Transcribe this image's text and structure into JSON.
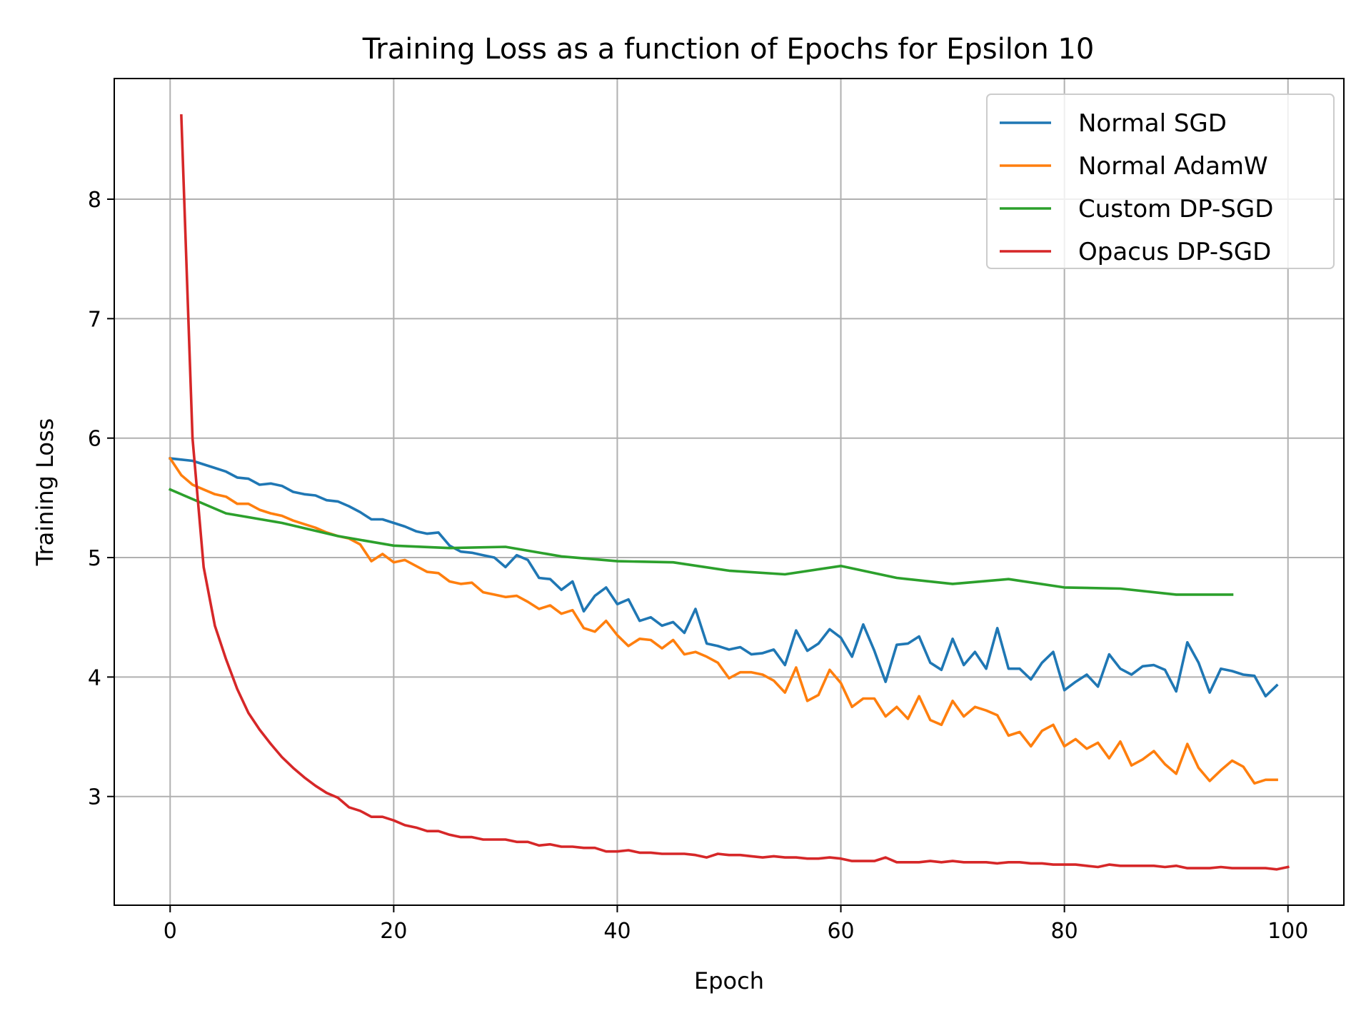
{
  "chart_data": {
    "type": "line",
    "title": "Training Loss as a function of Epochs for Epsilon 10",
    "xlabel": "Epoch",
    "ylabel": "Training Loss",
    "xlim": [
      -5,
      105
    ],
    "ylim": [
      2.09,
      9.01
    ],
    "xticks": [
      0,
      20,
      40,
      60,
      80,
      100
    ],
    "yticks": [
      3,
      4,
      5,
      6,
      7,
      8
    ],
    "grid": true,
    "legend_position": "top-right",
    "series": [
      {
        "name": "Normal SGD",
        "color": "#1f77b4",
        "x": [
          0,
          1,
          2,
          3,
          4,
          5,
          6,
          7,
          8,
          9,
          10,
          11,
          12,
          13,
          14,
          15,
          16,
          17,
          18,
          19,
          20,
          21,
          22,
          23,
          24,
          25,
          26,
          27,
          28,
          29,
          30,
          31,
          32,
          33,
          34,
          35,
          36,
          37,
          38,
          39,
          40,
          41,
          42,
          43,
          44,
          45,
          46,
          47,
          48,
          49,
          50,
          51,
          52,
          53,
          54,
          55,
          56,
          57,
          58,
          59,
          60,
          61,
          62,
          63,
          64,
          65,
          66,
          67,
          68,
          69,
          70,
          71,
          72,
          73,
          74,
          75,
          76,
          77,
          78,
          79,
          80,
          81,
          82,
          83,
          84,
          85,
          86,
          87,
          88,
          89,
          90,
          91,
          92,
          93,
          94,
          95,
          96,
          97,
          98,
          99
        ],
        "y": [
          5.83,
          5.82,
          5.81,
          5.78,
          5.75,
          5.72,
          5.67,
          5.66,
          5.61,
          5.62,
          5.6,
          5.55,
          5.53,
          5.52,
          5.48,
          5.47,
          5.43,
          5.38,
          5.32,
          5.32,
          5.29,
          5.26,
          5.22,
          5.2,
          5.21,
          5.1,
          5.05,
          5.04,
          5.02,
          5.0,
          4.92,
          5.02,
          4.98,
          4.83,
          4.82,
          4.73,
          4.8,
          4.55,
          4.68,
          4.75,
          4.61,
          4.65,
          4.47,
          4.5,
          4.43,
          4.46,
          4.37,
          4.57,
          4.28,
          4.26,
          4.23,
          4.25,
          4.19,
          4.2,
          4.23,
          4.1,
          4.39,
          4.22,
          4.28,
          4.4,
          4.33,
          4.17,
          4.44,
          4.22,
          3.96,
          4.27,
          4.28,
          4.34,
          4.12,
          4.06,
          4.32,
          4.1,
          4.21,
          4.07,
          4.41,
          4.07,
          4.07,
          3.98,
          4.12,
          4.21,
          3.89,
          3.96,
          4.02,
          3.92,
          4.19,
          4.07,
          4.02,
          4.09,
          4.1,
          4.06,
          3.88,
          4.29,
          4.12,
          3.87,
          4.07,
          4.05,
          4.02,
          4.01,
          3.84,
          3.93
        ]
      },
      {
        "name": "Normal AdamW",
        "color": "#ff7f0e",
        "x": [
          0,
          1,
          2,
          3,
          4,
          5,
          6,
          7,
          8,
          9,
          10,
          11,
          12,
          13,
          14,
          15,
          16,
          17,
          18,
          19,
          20,
          21,
          22,
          23,
          24,
          25,
          26,
          27,
          28,
          29,
          30,
          31,
          32,
          33,
          34,
          35,
          36,
          37,
          38,
          39,
          40,
          41,
          42,
          43,
          44,
          45,
          46,
          47,
          48,
          49,
          50,
          51,
          52,
          53,
          54,
          55,
          56,
          57,
          58,
          59,
          60,
          61,
          62,
          63,
          64,
          65,
          66,
          67,
          68,
          69,
          70,
          71,
          72,
          73,
          74,
          75,
          76,
          77,
          78,
          79,
          80,
          81,
          82,
          83,
          84,
          85,
          86,
          87,
          88,
          89,
          90,
          91,
          92,
          93,
          94,
          95,
          96,
          97,
          98,
          99
        ],
        "y": [
          5.83,
          5.69,
          5.61,
          5.57,
          5.53,
          5.51,
          5.45,
          5.45,
          5.4,
          5.37,
          5.35,
          5.31,
          5.28,
          5.25,
          5.21,
          5.18,
          5.16,
          5.11,
          4.97,
          5.03,
          4.96,
          4.98,
          4.93,
          4.88,
          4.87,
          4.8,
          4.78,
          4.79,
          4.71,
          4.69,
          4.67,
          4.68,
          4.63,
          4.57,
          4.6,
          4.53,
          4.56,
          4.41,
          4.38,
          4.47,
          4.35,
          4.26,
          4.32,
          4.31,
          4.24,
          4.31,
          4.19,
          4.21,
          4.17,
          4.12,
          3.99,
          4.04,
          4.04,
          4.02,
          3.97,
          3.87,
          4.08,
          3.8,
          3.85,
          4.06,
          3.95,
          3.75,
          3.82,
          3.82,
          3.67,
          3.75,
          3.65,
          3.84,
          3.64,
          3.6,
          3.8,
          3.67,
          3.75,
          3.72,
          3.68,
          3.51,
          3.54,
          3.42,
          3.55,
          3.6,
          3.42,
          3.48,
          3.4,
          3.45,
          3.32,
          3.46,
          3.26,
          3.31,
          3.38,
          3.27,
          3.19,
          3.44,
          3.24,
          3.13,
          3.22,
          3.3,
          3.25,
          3.11,
          3.14,
          3.14
        ]
      },
      {
        "name": "Custom DP-SGD",
        "color": "#2ca02c",
        "x": [
          0,
          5,
          10,
          15,
          20,
          25,
          30,
          35,
          40,
          45,
          50,
          55,
          60,
          65,
          70,
          75,
          80,
          85,
          90,
          95
        ],
        "y": [
          5.57,
          5.37,
          5.29,
          5.18,
          5.1,
          5.08,
          5.09,
          5.01,
          4.97,
          4.96,
          4.89,
          4.86,
          4.93,
          4.83,
          4.78,
          4.82,
          4.75,
          4.74,
          4.69,
          4.69
        ]
      },
      {
        "name": "Opacus DP-SGD",
        "color": "#d62728",
        "x": [
          1,
          2,
          3,
          4,
          5,
          6,
          7,
          8,
          9,
          10,
          11,
          12,
          13,
          14,
          15,
          16,
          17,
          18,
          19,
          20,
          21,
          22,
          23,
          24,
          25,
          26,
          27,
          28,
          29,
          30,
          31,
          32,
          33,
          34,
          35,
          36,
          37,
          38,
          39,
          40,
          41,
          42,
          43,
          44,
          45,
          46,
          47,
          48,
          49,
          50,
          51,
          52,
          53,
          54,
          55,
          56,
          57,
          58,
          59,
          60,
          61,
          62,
          63,
          64,
          65,
          66,
          67,
          68,
          69,
          70,
          71,
          72,
          73,
          74,
          75,
          76,
          77,
          78,
          79,
          80,
          81,
          82,
          83,
          84,
          85,
          86,
          87,
          88,
          89,
          90,
          91,
          92,
          93,
          94,
          95,
          96,
          97,
          98,
          99,
          100
        ],
        "y": [
          8.7,
          6.0,
          4.92,
          4.43,
          4.15,
          3.9,
          3.7,
          3.56,
          3.44,
          3.33,
          3.24,
          3.16,
          3.09,
          3.03,
          2.99,
          2.91,
          2.88,
          2.83,
          2.83,
          2.8,
          2.76,
          2.74,
          2.71,
          2.71,
          2.68,
          2.66,
          2.66,
          2.64,
          2.64,
          2.64,
          2.62,
          2.62,
          2.59,
          2.6,
          2.58,
          2.58,
          2.57,
          2.57,
          2.54,
          2.54,
          2.55,
          2.53,
          2.53,
          2.52,
          2.52,
          2.52,
          2.51,
          2.49,
          2.52,
          2.51,
          2.51,
          2.5,
          2.49,
          2.5,
          2.49,
          2.49,
          2.48,
          2.48,
          2.49,
          2.48,
          2.46,
          2.46,
          2.46,
          2.49,
          2.45,
          2.45,
          2.45,
          2.46,
          2.45,
          2.46,
          2.45,
          2.45,
          2.45,
          2.44,
          2.45,
          2.45,
          2.44,
          2.44,
          2.43,
          2.43,
          2.43,
          2.42,
          2.41,
          2.43,
          2.42,
          2.42,
          2.42,
          2.42,
          2.41,
          2.42,
          2.4,
          2.4,
          2.4,
          2.41,
          2.4,
          2.4,
          2.4,
          2.4,
          2.39,
          2.41
        ]
      }
    ]
  }
}
